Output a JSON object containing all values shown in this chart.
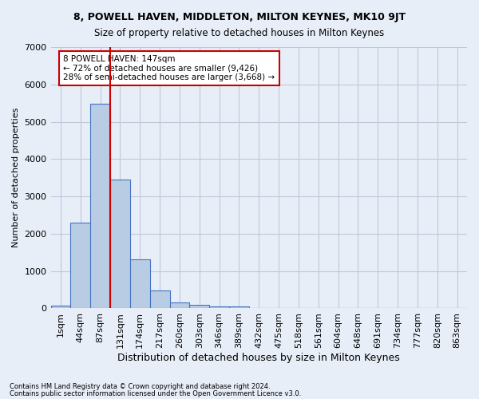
{
  "title": "8, POWELL HAVEN, MIDDLETON, MILTON KEYNES, MK10 9JT",
  "subtitle": "Size of property relative to detached houses in Milton Keynes",
  "xlabel": "Distribution of detached houses by size in Milton Keynes",
  "ylabel": "Number of detached properties",
  "annotation_lines": [
    "8 POWELL HAVEN: 147sqm",
    "← 72% of detached houses are smaller (9,426)",
    "28% of semi-detached houses are larger (3,668) →"
  ],
  "footer_lines": [
    "Contains HM Land Registry data © Crown copyright and database right 2024.",
    "Contains public sector information licensed under the Open Government Licence v3.0."
  ],
  "bar_values": [
    75,
    2290,
    5480,
    3450,
    1310,
    470,
    160,
    85,
    60,
    45,
    0,
    0,
    0,
    0,
    0,
    0,
    0,
    0,
    0,
    0,
    0
  ],
  "bar_labels": [
    "1sqm",
    "44sqm",
    "87sqm",
    "131sqm",
    "174sqm",
    "217sqm",
    "260sqm",
    "303sqm",
    "346sqm",
    "389sqm",
    "432sqm",
    "475sqm",
    "518sqm",
    "561sqm",
    "604sqm",
    "648sqm",
    "691sqm",
    "734sqm",
    "777sqm",
    "820sqm",
    "863sqm"
  ],
  "bar_color": "#b8cce4",
  "bar_edge_color": "#4472c4",
  "vline_color": "#cc0000",
  "ylim": [
    0,
    7000
  ],
  "yticks": [
    0,
    1000,
    2000,
    3000,
    4000,
    5000,
    6000,
    7000
  ],
  "annotation_box_color": "#cc0000",
  "grid_color": "#c0c8d8",
  "bg_color": "#e8eef8"
}
